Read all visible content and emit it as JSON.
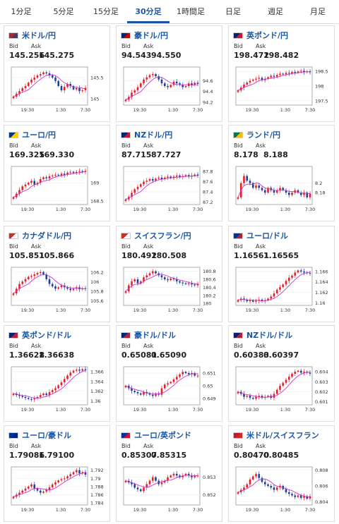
{
  "tabs": [
    {
      "label": "1分足",
      "active": false
    },
    {
      "label": "5分足",
      "active": false
    },
    {
      "label": "15分足",
      "active": false
    },
    {
      "label": "30分足",
      "active": true
    },
    {
      "label": "1時間足",
      "active": false
    },
    {
      "label": "日足",
      "active": false
    },
    {
      "label": "週足",
      "active": false
    },
    {
      "label": "月足",
      "active": false
    }
  ],
  "labels": {
    "bid": "Bid",
    "ask": "Ask"
  },
  "colors": {
    "up": "#e4202c",
    "down": "#1f3fa0",
    "ma": "#cc33cc",
    "link": "#1a56a6"
  },
  "x_ticks": [
    "19:30",
    "1:30",
    "7:30"
  ],
  "cards": [
    {
      "pair": "米ドル/円",
      "flag": "flag-us-jp-icon",
      "bid": "145.256",
      "ask": "145.275",
      "chart_data": {
        "type": "candlestick",
        "yticks": [
          "145.5",
          "145"
        ],
        "yvals": [
          145.5,
          145.0
        ],
        "ylim": [
          144.85,
          145.75
        ],
        "closes": [
          145.05,
          145.12,
          145.18,
          145.25,
          145.3,
          145.38,
          145.45,
          145.5,
          145.55,
          145.58,
          145.62,
          145.6,
          145.55,
          145.5,
          145.42,
          145.3,
          145.2,
          145.28,
          145.35,
          145.3,
          145.22,
          145.25,
          145.18,
          145.2,
          145.26
        ]
      }
    },
    {
      "pair": "豪ドル/円",
      "flag": "flag-au-jp-icon",
      "bid": "94.543",
      "ask": "94.550",
      "chart_data": {
        "type": "candlestick",
        "yticks": [
          "94.6",
          "94.4",
          "94.2"
        ],
        "yvals": [
          94.6,
          94.4,
          94.2
        ],
        "ylim": [
          94.15,
          94.85
        ],
        "closes": [
          94.25,
          94.3,
          94.38,
          94.42,
          94.48,
          94.55,
          94.62,
          94.66,
          94.7,
          94.72,
          94.68,
          94.62,
          94.55,
          94.5,
          94.48,
          94.52,
          94.58,
          94.55,
          94.52,
          94.48,
          94.5,
          94.55,
          94.52,
          94.56,
          94.54
        ]
      }
    },
    {
      "pair": "英ポンド/円",
      "flag": "flag-gb-jp-icon",
      "bid": "198.472",
      "ask": "198.482",
      "chart_data": {
        "type": "candlestick",
        "yticks": [
          "198.5",
          "198",
          "197.5"
        ],
        "yvals": [
          198.5,
          198.0,
          197.5
        ],
        "ylim": [
          197.35,
          198.65
        ],
        "closes": [
          197.85,
          197.95,
          198.05,
          198.12,
          198.18,
          198.22,
          198.25,
          198.28,
          198.2,
          198.25,
          198.3,
          198.35,
          198.32,
          198.38,
          198.42,
          198.4,
          198.45,
          198.43,
          198.48,
          198.45,
          198.5,
          198.52,
          198.48,
          198.5,
          198.47
        ]
      }
    },
    {
      "pair": "ユーロ/円",
      "flag": "flag-eu-jp-icon",
      "bid": "169.325",
      "ask": "169.330",
      "chart_data": {
        "type": "candlestick",
        "yticks": [
          "169",
          "168.5"
        ],
        "yvals": [
          169.0,
          168.5
        ],
        "ylim": [
          168.4,
          169.45
        ],
        "closes": [
          168.6,
          168.7,
          168.8,
          168.9,
          168.95,
          169.0,
          169.05,
          168.95,
          169.0,
          169.1,
          169.15,
          169.12,
          169.18,
          169.2,
          169.22,
          169.2,
          169.25,
          169.22,
          169.28,
          169.3,
          169.27,
          169.3,
          169.32,
          169.3,
          169.33
        ]
      }
    },
    {
      "pair": "NZドル/円",
      "flag": "flag-nz-jp-icon",
      "bid": "87.715",
      "ask": "87.727",
      "chart_data": {
        "type": "candlestick",
        "yticks": [
          "87.8",
          "87.6",
          "87.4",
          "87.2"
        ],
        "yvals": [
          87.8,
          87.6,
          87.4,
          87.2
        ],
        "ylim": [
          87.15,
          87.9
        ],
        "closes": [
          87.25,
          87.3,
          87.38,
          87.45,
          87.5,
          87.55,
          87.6,
          87.62,
          87.65,
          87.62,
          87.66,
          87.68,
          87.65,
          87.68,
          87.7,
          87.67,
          87.7,
          87.72,
          87.69,
          87.71,
          87.73,
          87.7,
          87.72,
          87.74,
          87.72
        ]
      }
    },
    {
      "pair": "ランド/円",
      "flag": "flag-za-jp-icon",
      "bid": "8.178",
      "ask": "8.188",
      "chart_data": {
        "type": "candlestick",
        "yticks": [
          "8.2",
          "8.18"
        ],
        "yvals": [
          8.2,
          8.18
        ],
        "ylim": [
          8.155,
          8.235
        ],
        "closes": [
          8.17,
          8.2,
          8.215,
          8.205,
          8.2,
          8.19,
          8.195,
          8.19,
          8.185,
          8.18,
          8.19,
          8.185,
          8.18,
          8.185,
          8.19,
          8.185,
          8.18,
          8.175,
          8.18,
          8.185,
          8.18,
          8.175,
          8.18,
          8.17,
          8.178
        ]
      }
    },
    {
      "pair": "カナダドル/円",
      "flag": "flag-ca-jp-icon",
      "bid": "105.851",
      "ask": "105.866",
      "chart_data": {
        "type": "candlestick",
        "yticks": [
          "106.2",
          "106",
          "105.8",
          "105.6"
        ],
        "yvals": [
          106.2,
          106.0,
          105.8,
          105.6
        ],
        "ylim": [
          105.5,
          106.3
        ],
        "closes": [
          105.75,
          105.85,
          105.95,
          106.0,
          106.05,
          106.1,
          106.12,
          106.15,
          106.18,
          106.2,
          106.15,
          106.05,
          105.95,
          105.9,
          105.85,
          105.88,
          105.92,
          105.88,
          105.85,
          105.82,
          105.85,
          105.88,
          105.84,
          105.86,
          105.85
        ]
      }
    },
    {
      "pair": "スイスフラン/円",
      "flag": "flag-ch-jp-icon",
      "bid": "180.492",
      "ask": "180.508",
      "chart_data": {
        "type": "candlestick",
        "yticks": [
          "180.8",
          "180.6",
          "180.4",
          "180.2",
          "180"
        ],
        "yvals": [
          180.8,
          180.6,
          180.4,
          180.2,
          180.0
        ],
        "ylim": [
          179.95,
          180.9
        ],
        "closes": [
          180.3,
          180.45,
          180.55,
          180.6,
          180.5,
          180.55,
          180.65,
          180.7,
          180.75,
          180.8,
          180.75,
          180.7,
          180.65,
          180.6,
          180.58,
          180.62,
          180.6,
          180.55,
          180.52,
          180.5,
          180.48,
          180.5,
          180.47,
          180.45,
          180.49
        ]
      }
    },
    {
      "pair": "ユーロ/ドル",
      "flag": "flag-eu-us-icon",
      "bid": "1.16561",
      "ask": "1.16565",
      "chart_data": {
        "type": "candlestick",
        "yticks": [
          "1.166",
          "1.164",
          "1.162",
          "1.16"
        ],
        "yvals": [
          1.166,
          1.164,
          1.162,
          1.16
        ],
        "ylim": [
          1.1595,
          1.1668
        ],
        "closes": [
          1.1605,
          1.1608,
          1.1606,
          1.1603,
          1.1605,
          1.1602,
          1.1604,
          1.1606,
          1.1603,
          1.1605,
          1.1608,
          1.1612,
          1.1618,
          1.1625,
          1.163,
          1.1635,
          1.1642,
          1.1648,
          1.1652,
          1.1658,
          1.1662,
          1.166,
          1.1658,
          1.1657,
          1.1656
        ]
      }
    },
    {
      "pair": "英ポンド/ドル",
      "flag": "flag-gb-us-icon",
      "bid": "1.36628",
      "ask": "1.36638",
      "chart_data": {
        "type": "candlestick",
        "yticks": [
          "1.366",
          "1.364",
          "1.362",
          "1.36"
        ],
        "yvals": [
          1.366,
          1.364,
          1.362,
          1.36
        ],
        "ylim": [
          1.3592,
          1.367
        ],
        "closes": [
          1.3615,
          1.3612,
          1.361,
          1.3608,
          1.3606,
          1.3604,
          1.3603,
          1.3605,
          1.3608,
          1.3612,
          1.3615,
          1.3612,
          1.3618,
          1.3622,
          1.3626,
          1.3632,
          1.3638,
          1.3645,
          1.3652,
          1.3658,
          1.3662,
          1.3664,
          1.3662,
          1.3665,
          1.3663
        ]
      }
    },
    {
      "pair": "豪ドル/ドル",
      "flag": "flag-au-us-icon",
      "bid": "0.65081",
      "ask": "0.65090",
      "chart_data": {
        "type": "candlestick",
        "yticks": [
          "0.651",
          "0.65",
          "0.649"
        ],
        "yvals": [
          0.651,
          0.65,
          0.649
        ],
        "ylim": [
          0.6485,
          0.6515
        ],
        "closes": [
          0.65,
          0.6498,
          0.6496,
          0.6495,
          0.6494,
          0.6493,
          0.6495,
          0.6494,
          0.6493,
          0.6492,
          0.6494,
          0.6493,
          0.6498,
          0.6501,
          0.6502,
          0.6503,
          0.6505,
          0.6507,
          0.6509,
          0.6511,
          0.651,
          0.6509,
          0.651,
          0.6508,
          0.6508
        ]
      }
    },
    {
      "pair": "NZドル/ドル",
      "flag": "flag-nz-us-icon",
      "bid": "0.60383",
      "ask": "0.60397",
      "chart_data": {
        "type": "candlestick",
        "yticks": [
          "0.604",
          "0.603",
          "0.602",
          "0.601"
        ],
        "yvals": [
          0.604,
          0.603,
          0.602,
          0.601
        ],
        "ylim": [
          0.6007,
          0.6045
        ],
        "closes": [
          0.602,
          0.6018,
          0.6015,
          0.6016,
          0.6014,
          0.6013,
          0.6015,
          0.6016,
          0.6014,
          0.6015,
          0.6016,
          0.6014,
          0.6018,
          0.6022,
          0.6026,
          0.6029,
          0.6032,
          0.6035,
          0.6038,
          0.604,
          0.6041,
          0.6039,
          0.604,
          0.6039,
          0.6038
        ]
      }
    },
    {
      "pair": "ユーロ/豪ドル",
      "flag": "flag-eu-au-icon",
      "bid": "1.79086",
      "ask": "1.79100",
      "chart_data": {
        "type": "candlestick",
        "yticks": [
          "1.792",
          "1.79",
          "1.788",
          "1.786",
          "1.784"
        ],
        "yvals": [
          1.792,
          1.79,
          1.788,
          1.786,
          1.784
        ],
        "ylim": [
          1.7835,
          1.7928
        ],
        "closes": [
          1.7855,
          1.786,
          1.7865,
          1.787,
          1.7875,
          1.788,
          1.7885,
          1.7875,
          1.787,
          1.7865,
          1.7868,
          1.7872,
          1.7878,
          1.7885,
          1.789,
          1.7895,
          1.7898,
          1.79,
          1.7905,
          1.791,
          1.7915,
          1.792,
          1.7912,
          1.7915,
          1.7909
        ]
      }
    },
    {
      "pair": "ユーロ/英ポンド",
      "flag": "flag-eu-gb-icon",
      "bid": "0.85307",
      "ask": "0.85315",
      "chart_data": {
        "type": "candlestick",
        "yticks": [
          "0.853",
          "0.852"
        ],
        "yvals": [
          0.853,
          0.852
        ],
        "ylim": [
          0.8514,
          0.8536
        ],
        "closes": [
          0.8528,
          0.8527,
          0.8526,
          0.8524,
          0.8523,
          0.8522,
          0.8524,
          0.8526,
          0.8528,
          0.853,
          0.8528,
          0.8526,
          0.8527,
          0.8528,
          0.853,
          0.8531,
          0.8532,
          0.8531,
          0.853,
          0.8531,
          0.8532,
          0.8531,
          0.853,
          0.8531,
          0.8531
        ]
      }
    },
    {
      "pair": "米ドル/スイスフラン",
      "flag": "flag-us-ch-icon",
      "bid": "0.80470",
      "ask": "0.80485",
      "chart_data": {
        "type": "candlestick",
        "yticks": [
          "0.808",
          "0.806",
          "0.804"
        ],
        "yvals": [
          0.808,
          0.806,
          0.804
        ],
        "ylim": [
          0.8036,
          0.8084
        ],
        "closes": [
          0.8052,
          0.8055,
          0.8058,
          0.8062,
          0.8068,
          0.8072,
          0.8075,
          0.807,
          0.8065,
          0.8062,
          0.806,
          0.8058,
          0.8055,
          0.8058,
          0.806,
          0.8056,
          0.8052,
          0.805,
          0.8048,
          0.8046,
          0.8048,
          0.8045,
          0.8047,
          0.8044,
          0.8047
        ]
      }
    }
  ]
}
